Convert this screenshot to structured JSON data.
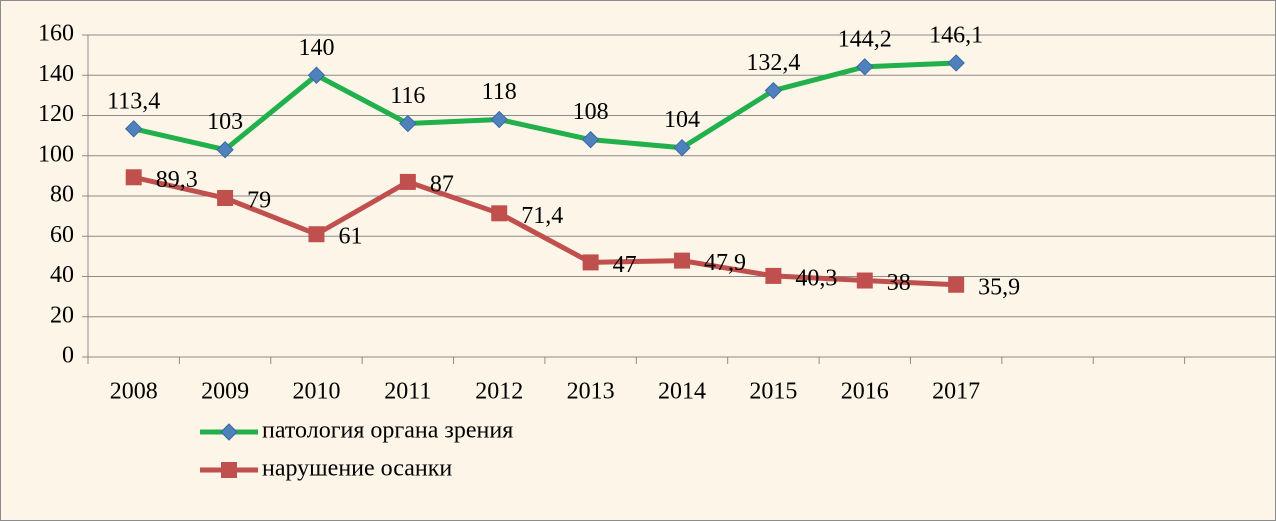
{
  "chart_data": {
    "type": "line",
    "categories": [
      "2008",
      "2009",
      "2010",
      "2011",
      "2012",
      "2013",
      "2014",
      "2015",
      "2016",
      "2017",
      null,
      null,
      null
    ],
    "series": [
      {
        "name": "патология органа зрения",
        "color": "#21b04b",
        "marker_color": "#4f81bd",
        "marker": "diamond",
        "values": [
          113.4,
          103,
          140,
          116,
          118,
          108,
          104,
          132.4,
          144.2,
          146.1,
          null,
          null,
          null
        ],
        "value_labels": [
          "113,4",
          "103",
          "140",
          "116",
          "118",
          "108",
          "104",
          "132,4",
          "144,2",
          "146,1",
          null,
          null,
          null
        ]
      },
      {
        "name": "нарушение осанки",
        "color": "#c0504d",
        "marker_color": "#c0504d",
        "marker": "square",
        "values": [
          89.3,
          79,
          61,
          87,
          71.4,
          47,
          47.9,
          40.3,
          38,
          35.9,
          null,
          null,
          null
        ],
        "value_labels": [
          "89,3",
          "79",
          "61",
          "87",
          "71,4",
          "47",
          "47,9",
          "40,3",
          "38",
          "35,9",
          null,
          null,
          null
        ]
      }
    ],
    "ylim": [
      0,
      160
    ],
    "yticks": [
      0,
      20,
      40,
      60,
      80,
      100,
      120,
      140,
      160
    ],
    "grid": true
  }
}
